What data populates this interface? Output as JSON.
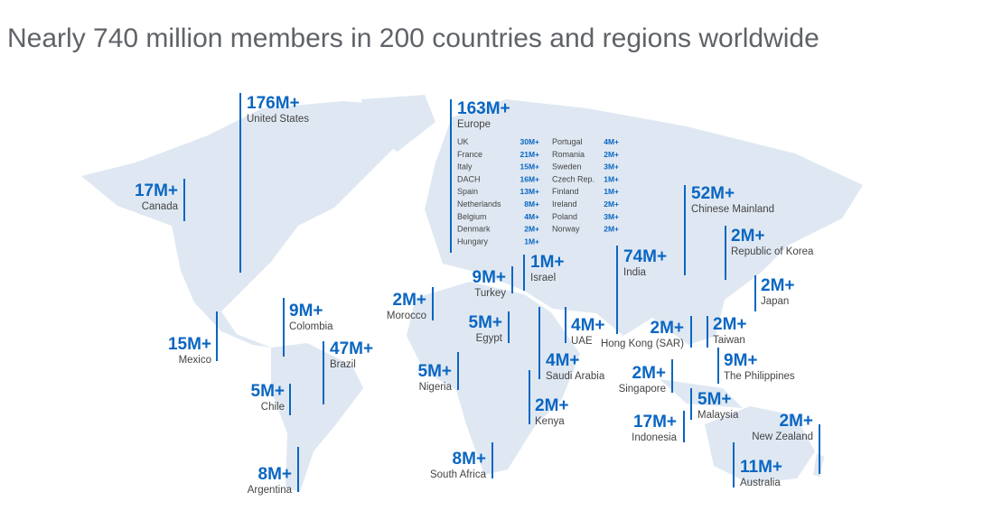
{
  "title": "Nearly 740 million members in 200 countries and regions worldwide",
  "regions": [
    {
      "value": "176M+",
      "name": "United States"
    },
    {
      "value": "17M+",
      "name": "Canada"
    },
    {
      "value": "15M+",
      "name": "Mexico"
    },
    {
      "value": "9M+",
      "name": "Colombia"
    },
    {
      "value": "47M+",
      "name": "Brazil"
    },
    {
      "value": "5M+",
      "name": "Chile"
    },
    {
      "value": "8M+",
      "name": "Argentina"
    },
    {
      "value": "2M+",
      "name": "Morocco"
    },
    {
      "value": "9M+",
      "name": "Turkey"
    },
    {
      "value": "1M+",
      "name": "Israel"
    },
    {
      "value": "5M+",
      "name": "Egypt"
    },
    {
      "value": "5M+",
      "name": "Nigeria"
    },
    {
      "value": "4M+",
      "name": "Saudi Arabia"
    },
    {
      "value": "4M+",
      "name": "UAE"
    },
    {
      "value": "2M+",
      "name": "Kenya"
    },
    {
      "value": "8M+",
      "name": "South Africa"
    },
    {
      "value": "74M+",
      "name": "India"
    },
    {
      "value": "52M+",
      "name": "Chinese Mainland"
    },
    {
      "value": "2M+",
      "name": "Republic of Korea"
    },
    {
      "value": "2M+",
      "name": "Japan"
    },
    {
      "value": "2M+",
      "name": "Hong Kong (SAR)"
    },
    {
      "value": "2M+",
      "name": "Taiwan"
    },
    {
      "value": "9M+",
      "name": "The Philippines"
    },
    {
      "value": "2M+",
      "name": "Singapore"
    },
    {
      "value": "5M+",
      "name": "Malaysia"
    },
    {
      "value": "17M+",
      "name": "Indonesia"
    },
    {
      "value": "2M+",
      "name": "New Zealand"
    },
    {
      "value": "11M+",
      "name": "Australia"
    },
    {
      "value": "163M+",
      "name": "Europe",
      "countries": [
        {
          "name": "UK",
          "value": "30M+"
        },
        {
          "name": "France",
          "value": "21M+"
        },
        {
          "name": "Italy",
          "value": "15M+"
        },
        {
          "name": "DACH",
          "value": "16M+"
        },
        {
          "name": "Spain",
          "value": "13M+"
        },
        {
          "name": "Netherlands",
          "value": "8M+"
        },
        {
          "name": "Belgium",
          "value": "4M+"
        },
        {
          "name": "Denmark",
          "value": "2M+"
        },
        {
          "name": "Hungary",
          "value": "1M+"
        },
        {
          "name": "Portugal",
          "value": "4M+"
        },
        {
          "name": "Romania",
          "value": "2M+"
        },
        {
          "name": "Sweden",
          "value": "3M+"
        },
        {
          "name": "Czech Rep.",
          "value": "1M+"
        },
        {
          "name": "Finland",
          "value": "1M+"
        },
        {
          "name": "Ireland",
          "value": "2M+"
        },
        {
          "name": "Poland",
          "value": "3M+"
        },
        {
          "name": "Norway",
          "value": "2M+"
        }
      ]
    }
  ]
}
